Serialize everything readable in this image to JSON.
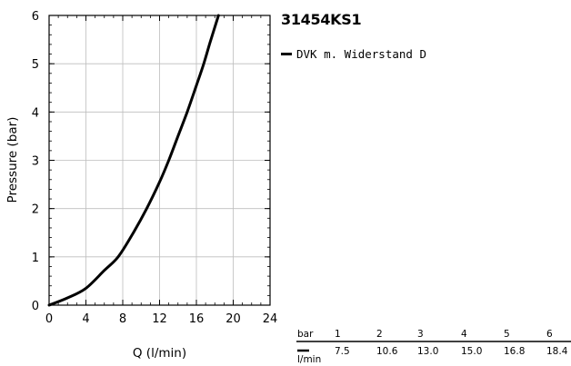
{
  "chart_data": {
    "type": "line",
    "title": "31454KS1",
    "xlabel": "Q (l/min)",
    "ylabel": "Pressure (bar)",
    "xlim": [
      0,
      24
    ],
    "ylim": [
      0,
      6
    ],
    "x_ticks": [
      "0",
      "4",
      "8",
      "12",
      "16",
      "20",
      "24"
    ],
    "y_ticks": [
      "0",
      "1",
      "2",
      "3",
      "4",
      "5",
      "6"
    ],
    "grid": true,
    "legend_position": "right",
    "series": [
      {
        "name": "DVK m. Widerstand D",
        "color": "#000000",
        "x": [
          0,
          2,
          4,
          6,
          7.5,
          9,
          10.6,
          12,
          13.0,
          14,
          15.0,
          16,
          16.8,
          17.5,
          18.4
        ],
        "y": [
          0,
          0.15,
          0.35,
          0.72,
          1.0,
          1.45,
          2.0,
          2.55,
          3.0,
          3.5,
          4.0,
          4.55,
          5.0,
          5.45,
          6.0
        ]
      }
    ]
  },
  "flow_table": {
    "header_label": "bar",
    "row_label": "l/min",
    "pressures": [
      "1",
      "2",
      "3",
      "4",
      "5",
      "6"
    ],
    "flows": [
      "7.5",
      "10.6",
      "13.0",
      "15.0",
      "16.8",
      "18.4"
    ]
  }
}
